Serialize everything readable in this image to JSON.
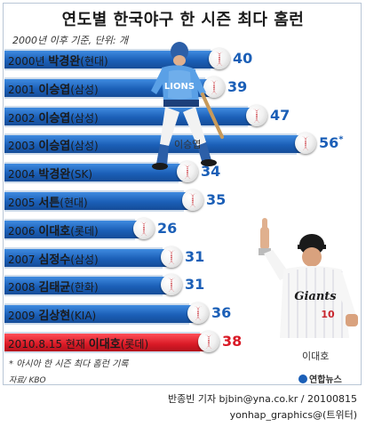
{
  "title": "연도별 한국야구 한 시즌 최다 홈런",
  "subtitle": "2000년 이후 기준, 단위: 개",
  "note": "* 아시아 한 시즌 최다 홈런 기록",
  "source": "자료/ KBO",
  "logo_text": "연합뉴스",
  "credit_line1": "반종빈 기자 bjbin@yna.co.kr / 20100815",
  "credit_line2": "yonhap_graphics@(트위터)",
  "player_labels": {
    "left": "이승엽",
    "right": "이대호"
  },
  "colors": {
    "bar": "#1b5fb7",
    "highlight": "#d91a26",
    "row_bg": "#cfdceb"
  },
  "chart_data": {
    "type": "bar",
    "orientation": "horizontal",
    "title": "연도별 한국야구 한 시즌 최다 홈런",
    "unit": "개",
    "rows": [
      {
        "year": "2000년",
        "player": "박경완",
        "team": "(현대)",
        "value": 40,
        "value_label": "40",
        "highlight": false
      },
      {
        "year": "2001",
        "player": "이승엽",
        "team": "(삼성)",
        "value": 39,
        "value_label": "39",
        "highlight": false
      },
      {
        "year": "2002",
        "player": "이승엽",
        "team": "(삼성)",
        "value": 47,
        "value_label": "47",
        "highlight": false
      },
      {
        "year": "2003",
        "player": "이승엽",
        "team": "(삼성)",
        "value": 56,
        "value_label": "56*",
        "highlight": false
      },
      {
        "year": "2004",
        "player": "박경완",
        "team": "(SK)",
        "value": 34,
        "value_label": "34",
        "highlight": false
      },
      {
        "year": "2005",
        "player": "서튼",
        "team": "(현대)",
        "value": 35,
        "value_label": "35",
        "highlight": false
      },
      {
        "year": "2006",
        "player": "이대호",
        "team": "(롯데)",
        "value": 26,
        "value_label": "26",
        "highlight": false
      },
      {
        "year": "2007",
        "player": "심정수",
        "team": "(삼성)",
        "value": 31,
        "value_label": "31",
        "highlight": false
      },
      {
        "year": "2008",
        "player": "김태균",
        "team": "(한화)",
        "value": 31,
        "value_label": "31",
        "highlight": false
      },
      {
        "year": "2009",
        "player": "김상현",
        "team": "(KIA)",
        "value": 36,
        "value_label": "36",
        "highlight": false
      },
      {
        "year": "2010.8.15 현재",
        "player": "이대호",
        "team": "(롯데)",
        "value": 38,
        "value_label": "38",
        "highlight": true
      }
    ]
  }
}
